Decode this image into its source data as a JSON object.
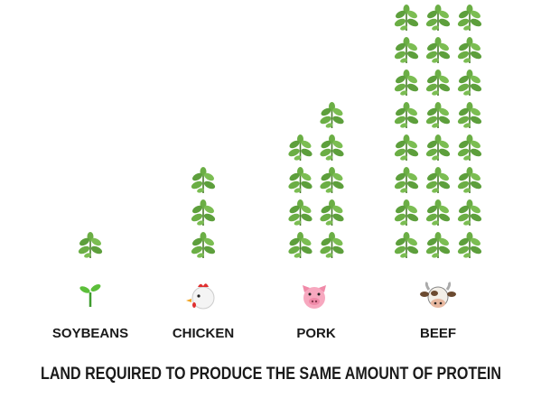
{
  "chart_data": {
    "type": "pictogram",
    "title": "LAND REQUIRED TO PRODUCE THE SAME AMOUNT OF PROTEIN",
    "categories": [
      "SOYBEANS",
      "CHICKEN",
      "PORK",
      "BEEF"
    ],
    "values": [
      1,
      3,
      9,
      24
    ],
    "color": "#5a9e3a"
  }
}
